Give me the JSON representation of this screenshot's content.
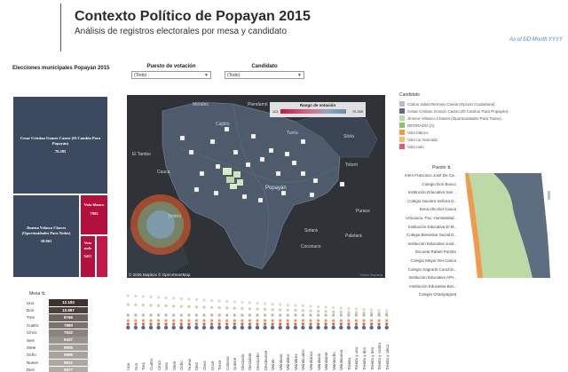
{
  "header": {
    "title": "Contexto Político de Popayan 2015",
    "subtitle": "Análisis de registros electorales por mesa y candidato",
    "as_of": "As of DD Month YYYY"
  },
  "section_label": "Elecciones municipales Popayán 2015",
  "filters": [
    {
      "label": "Puesto de votación",
      "value": "(Todo)"
    },
    {
      "label": "Candidato",
      "value": "(Todo)"
    }
  ],
  "treemap": [
    {
      "label": "Cesar Cristian Gomez Castro (El Cambio Para Popayán)",
      "value": "70.285",
      "color": "#3b4a5e"
    },
    {
      "label": "Jimena Velasco Chaves (Oportunidades Para Todos)",
      "value": "58.961",
      "color": "#3b4a5e"
    },
    {
      "label": "Voto blanco",
      "value": "7983",
      "color": "#b3103d"
    },
    {
      "label": "Voto nulo",
      "value": "3451",
      "color": "#b3103d"
    }
  ],
  "map": {
    "legend_title": "Rango de votación",
    "legend_min": "113",
    "legend_max": "70.285",
    "city_label": "Popayán",
    "place_labels": [
      "Cauca",
      "Cajibío",
      "Totoró",
      "Timbío",
      "Sotará",
      "Purace",
      "Piendamó",
      "Morales",
      "Coconuco",
      "El Tambo",
      "Tunía",
      "Silvia",
      "Paletará"
    ],
    "copyright": "© 2026 Mapbox  © OpenStreetMap",
    "attribution": "Vision Nomina"
  },
  "legend": {
    "title": "Candidato",
    "items": [
      {
        "label": "Carlos Julian Bermeo Casas (Opción Ciudadana)",
        "color": "#b8bdc3"
      },
      {
        "label": "Cesar Cristian Gomez Castro (El Cambio Para Popayán)",
        "color": "#5d6e80"
      },
      {
        "label": "Jimena Velasco Chaves (Oportunidades Para Todos)",
        "color": "#bcd9a6"
      },
      {
        "label": "RETIRADO (A)",
        "color": "#8ec06c"
      },
      {
        "label": "Voto blanco",
        "color": "#ef9a4e"
      },
      {
        "label": "Voto no marcado",
        "color": "#f2b979"
      },
      {
        "label": "Voto nulo",
        "color": "#d9626a"
      }
    ]
  },
  "puesto": {
    "title": "Puesto",
    "items": [
      "Inem Francisco José De Ca..",
      "Colegio Don Bosco",
      "Institución Educativa San ..",
      "Colegio Nuestra Señora D..",
      "Sena Alto Del Cauca",
      "Unicauca. Fac. Humanidad..",
      "Institución Educativa El M..",
      "Colegio Bienestar Social D..",
      "Institución Educativa José..",
      "Escuela Rafael Pombo",
      "Colegio Mayor Del Cauca",
      "Colegio Sagrado Corazón..",
      "Institución Educativa APA..",
      "Institución Educativa Bos..",
      "Colegio Champagnat"
    ]
  },
  "mesa": {
    "header": "Mesa",
    "rows": [
      {
        "label": "Uno",
        "value": "12.183",
        "color": "#3d3330"
      },
      {
        "label": "Dos",
        "value": "10.897",
        "color": "#4a403d"
      },
      {
        "label": "Tres",
        "value": "8766",
        "color": "#6d6360"
      },
      {
        "label": "Cuatro",
        "value": "7880",
        "color": "#7c7370"
      },
      {
        "label": "Cinco",
        "value": "7632",
        "color": "#8b8380"
      },
      {
        "label": "Seis",
        "value": "6447",
        "color": "#9a9390"
      },
      {
        "label": "Siete",
        "value": "6005",
        "color": "#a39c99"
      },
      {
        "label": "Ocho",
        "value": "5695",
        "color": "#a9a3a0"
      },
      {
        "label": "Nueve",
        "value": "5621",
        "color": "#ada7a4"
      },
      {
        "label": "Diez",
        "value": "5577",
        "color": "#b1aba8"
      }
    ]
  },
  "dot_chart": {
    "categories": [
      "Uno",
      "Dos",
      "Tres",
      "Cuatro",
      "Cinco",
      "Seis",
      "Siete",
      "Ocho",
      "Nueve",
      "Diez",
      "Once",
      "Doce",
      "Trece",
      "Catorce",
      "Quince",
      "Dieciseis",
      "Diecisiete",
      "Dieciocho",
      "Diecinueve",
      "Veinte",
      "Veintiuno",
      "Veintidos",
      "Veintitres",
      "Veinticuatro",
      "Veinticinco",
      "Veintiseis",
      "Veintisiete",
      "Veintiocho",
      "Veintinueve",
      "Treinta",
      "Treinta y uno",
      "Treinta y dos",
      "Treinta y tres",
      "Treinta y cuatro",
      "Treinta y cinco"
    ]
  }
}
